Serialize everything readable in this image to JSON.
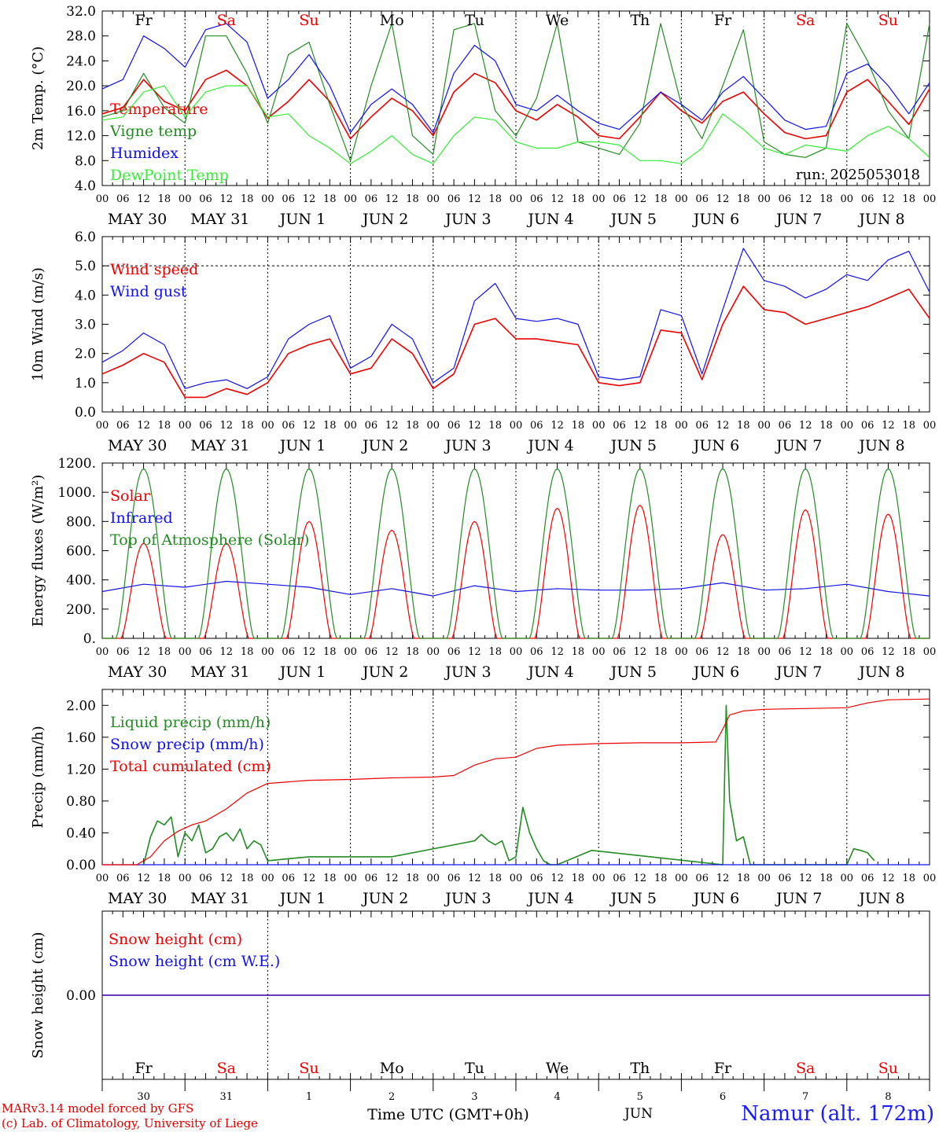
{
  "run_label": "run: 2025053018",
  "footer": {
    "model_credit": "MARv3.14 model forced by GFS",
    "lab_credit": "(c) Lab. of Climatology, University of Liege",
    "station": "Namur (alt. 172m)",
    "xaxis_label": "Time UTC (GMT+0h)",
    "month_label": "JUN"
  },
  "days": [
    {
      "abbr": "Fr",
      "date_label": "MAY 30",
      "num": "30",
      "weekend": false
    },
    {
      "abbr": "Sa",
      "date_label": "MAY 31",
      "num": "31",
      "weekend": true
    },
    {
      "abbr": "Su",
      "date_label": "JUN  1",
      "num": "1",
      "weekend": true
    },
    {
      "abbr": "Mo",
      "date_label": "JUN  2",
      "num": "2",
      "weekend": false
    },
    {
      "abbr": "Tu",
      "date_label": "JUN  3",
      "num": "3",
      "weekend": false
    },
    {
      "abbr": "We",
      "date_label": "JUN  4",
      "num": "4",
      "weekend": false
    },
    {
      "abbr": "Th",
      "date_label": "JUN  5",
      "num": "5",
      "weekend": false
    },
    {
      "abbr": "Fr",
      "date_label": "JUN  6",
      "num": "6",
      "weekend": false
    },
    {
      "abbr": "Sa",
      "date_label": "JUN  7",
      "num": "7",
      "weekend": true
    },
    {
      "abbr": "Su",
      "date_label": "JUN  8",
      "num": "8",
      "weekend": true
    }
  ],
  "hour_ticks": [
    "00",
    "06",
    "12",
    "18"
  ],
  "colors": {
    "red": "#ee0000",
    "blue": "#1010ee",
    "green": "#228b22",
    "lightgreen": "#33ee33",
    "weekend": "#ee0000",
    "weekday": "#000000"
  },
  "chart_data": [
    {
      "type": "line",
      "ylabel": "2m Temp. (°C)",
      "ylim": [
        4,
        32
      ],
      "yticks": [
        4,
        8,
        12,
        16,
        20,
        24,
        28,
        32
      ],
      "ytick_labels": [
        "4.0",
        "8.0",
        "12.0",
        "16.0",
        "20.0",
        "24.0",
        "28.0",
        "32.0"
      ],
      "show_day_abbr": true,
      "show_run": true,
      "x_hours": [
        0,
        6,
        12,
        18,
        24,
        30,
        36,
        42,
        48,
        54,
        60,
        66,
        72,
        78,
        84,
        90,
        96,
        102,
        108,
        114,
        120,
        126,
        132,
        138,
        144,
        150,
        156,
        162,
        168,
        174,
        180,
        186,
        192,
        198,
        204,
        210,
        216,
        222,
        228,
        234,
        240
      ],
      "series": [
        {
          "name": "Temperature",
          "color": "#ee0000",
          "values": [
            15.5,
            16.5,
            21.0,
            17.5,
            16.0,
            21.0,
            22.5,
            20.0,
            14.8,
            17.5,
            21.0,
            17.5,
            11.5,
            15.0,
            18.0,
            16.0,
            12.0,
            19.0,
            22.0,
            20.5,
            16.0,
            14.5,
            17.0,
            15.0,
            12.0,
            11.5,
            15.0,
            19.0,
            16.0,
            14.0,
            17.5,
            19.0,
            15.5,
            12.5,
            11.5,
            12.0,
            19.0,
            21.0,
            17.5,
            13.8,
            19.5
          ]
        },
        {
          "name": "Vigne temp",
          "color": "#228b22",
          "values": [
            15.0,
            16.0,
            22.0,
            16.5,
            14.0,
            28.0,
            28.0,
            22.0,
            14.0,
            25.0,
            27.0,
            17.0,
            8.0,
            20.0,
            30.0,
            12.0,
            9.0,
            29.0,
            30.0,
            16.0,
            12.0,
            18.0,
            30.0,
            11.0,
            10.0,
            9.0,
            14.0,
            30.0,
            17.0,
            11.5,
            20.0,
            29.0,
            11.0,
            9.0,
            8.5,
            10.0,
            30.0,
            24.0,
            16.0,
            11.5,
            30.0
          ]
        },
        {
          "name": "Humidex",
          "color": "#1010ee",
          "values": [
            19.5,
            21.0,
            28.0,
            26.0,
            23.0,
            29.0,
            30.0,
            27.0,
            18.0,
            21.0,
            25.0,
            20.0,
            12.5,
            17.0,
            19.5,
            17.0,
            12.5,
            22.0,
            26.5,
            24.0,
            17.0,
            16.0,
            18.5,
            16.0,
            14.0,
            13.0,
            16.0,
            19.0,
            17.0,
            14.5,
            19.0,
            21.5,
            18.0,
            14.5,
            13.0,
            13.5,
            22.0,
            23.5,
            20.0,
            15.5,
            20.5
          ]
        },
        {
          "name": "DewPoint Temp",
          "color": "#33ee33",
          "values": [
            14.5,
            15.0,
            19.0,
            20.0,
            15.0,
            19.0,
            20.0,
            20.0,
            15.0,
            15.5,
            12.0,
            10.0,
            7.5,
            9.5,
            12.0,
            9.0,
            7.5,
            12.0,
            15.0,
            14.5,
            11.0,
            10.0,
            10.0,
            11.0,
            11.0,
            10.5,
            8.0,
            8.0,
            7.5,
            10.0,
            15.5,
            13.0,
            10.0,
            9.0,
            10.5,
            10.0,
            9.5,
            12.0,
            13.5,
            11.5,
            8.5
          ]
        }
      ]
    },
    {
      "type": "line",
      "ylabel": "10m Wind (m/s)",
      "ylim": [
        0,
        6
      ],
      "yticks": [
        0,
        1,
        2,
        3,
        4,
        5,
        6
      ],
      "ytick_labels": [
        "0.0",
        "1.0",
        "2.0",
        "3.0",
        "4.0",
        "5.0",
        "6.0"
      ],
      "ref_line": 5,
      "x_hours": [
        0,
        6,
        12,
        18,
        24,
        30,
        36,
        42,
        48,
        54,
        60,
        66,
        72,
        78,
        84,
        90,
        96,
        102,
        108,
        114,
        120,
        126,
        132,
        138,
        144,
        150,
        156,
        162,
        168,
        174,
        180,
        186,
        192,
        198,
        204,
        210,
        216,
        222,
        228,
        234,
        240
      ],
      "series": [
        {
          "name": "Wind speed",
          "color": "#ee0000",
          "values": [
            1.3,
            1.6,
            2.0,
            1.7,
            0.5,
            0.5,
            0.8,
            0.6,
            1.0,
            2.0,
            2.3,
            2.5,
            1.3,
            1.5,
            2.5,
            2.0,
            0.8,
            1.3,
            3.0,
            3.2,
            2.5,
            2.5,
            2.4,
            2.3,
            1.0,
            0.9,
            1.0,
            2.8,
            2.7,
            1.1,
            3.0,
            4.3,
            3.5,
            3.4,
            3.0,
            3.2,
            3.4,
            3.6,
            3.9,
            4.2,
            3.2
          ]
        },
        {
          "name": "Wind gust",
          "color": "#1010ee",
          "values": [
            1.7,
            2.1,
            2.7,
            2.3,
            0.8,
            1.0,
            1.1,
            0.8,
            1.2,
            2.5,
            3.0,
            3.3,
            1.5,
            1.9,
            3.0,
            2.5,
            1.0,
            1.5,
            3.8,
            4.4,
            3.2,
            3.1,
            3.2,
            3.0,
            1.2,
            1.1,
            1.2,
            3.5,
            3.3,
            1.3,
            3.5,
            5.6,
            4.5,
            4.3,
            3.9,
            4.2,
            4.7,
            4.5,
            5.2,
            5.5,
            4.1
          ]
        }
      ]
    },
    {
      "type": "line",
      "ylabel": "Energy fluxes (W/m²)",
      "ylim": [
        0,
        1200
      ],
      "yticks": [
        0,
        200,
        400,
        600,
        800,
        1000,
        1200
      ],
      "ytick_labels": [
        "0.",
        "200.",
        "400.",
        "600.",
        "800.",
        "1000.",
        "1200."
      ],
      "series": [
        {
          "name": "Solar",
          "color": "#ee0000",
          "peak_hours": [
            12,
            36,
            60,
            84,
            108,
            132,
            156,
            180,
            204,
            228
          ],
          "peak_values": [
            650,
            650,
            800,
            740,
            800,
            890,
            910,
            710,
            880,
            850
          ]
        },
        {
          "name": "Infrared",
          "color": "#1010ee",
          "x_hours": [
            0,
            12,
            24,
            36,
            48,
            60,
            72,
            84,
            96,
            108,
            120,
            132,
            144,
            156,
            168,
            180,
            192,
            204,
            216,
            228,
            240
          ],
          "values": [
            320,
            370,
            350,
            390,
            370,
            350,
            300,
            340,
            290,
            360,
            320,
            340,
            330,
            330,
            340,
            380,
            330,
            340,
            370,
            320,
            290
          ]
        },
        {
          "name": "Top of Atmosphere (Solar)",
          "color": "#228b22",
          "peak_hours": [
            12,
            36,
            60,
            84,
            108,
            132,
            156,
            180,
            204,
            228
          ],
          "peak_values": [
            1160,
            1160,
            1160,
            1160,
            1160,
            1160,
            1160,
            1160,
            1160,
            1160
          ]
        }
      ]
    },
    {
      "type": "line",
      "ylabel": "Precip (mm/h)",
      "ylim": [
        0,
        2.2
      ],
      "yticks": [
        0,
        0.4,
        0.8,
        1.2,
        1.6,
        2.0
      ],
      "ytick_labels": [
        "0.00",
        "0.40",
        "0.80",
        "1.20",
        "1.60",
        "2.00"
      ],
      "series": [
        {
          "name": "Liquid precip (mm/h)",
          "color": "#228b22",
          "x_hours": [
            12,
            14,
            16,
            18,
            20,
            22,
            24,
            26,
            28,
            30,
            32,
            34,
            36,
            38,
            40,
            42,
            44,
            46,
            48,
            60,
            84,
            108,
            110,
            112,
            114,
            116,
            118,
            120,
            122,
            124,
            126,
            128,
            130,
            132,
            142,
            180,
            181,
            182,
            184,
            186,
            188,
            216,
            218,
            220,
            222,
            224
          ],
          "values": [
            0,
            0.35,
            0.55,
            0.5,
            0.6,
            0.1,
            0.4,
            0.3,
            0.5,
            0.15,
            0.2,
            0.35,
            0.4,
            0.3,
            0.45,
            0.2,
            0.3,
            0.25,
            0.05,
            0.1,
            0.1,
            0.3,
            0.38,
            0.3,
            0.25,
            0.3,
            0.05,
            0.1,
            0.72,
            0.4,
            0.2,
            0.05,
            0.0,
            0.0,
            0.18,
            0.0,
            2.0,
            0.8,
            0.3,
            0.35,
            0.0,
            0.0,
            0.2,
            0.18,
            0.15,
            0.05
          ]
        },
        {
          "name": "Snow precip (mm/h)",
          "color": "#1010ee",
          "x_hours": [
            0,
            240
          ],
          "values": [
            0,
            0
          ]
        },
        {
          "name": "Total cumulated (cm)",
          "color": "#ee0000",
          "x_hours": [
            0,
            10,
            14,
            18,
            22,
            26,
            30,
            36,
            42,
            48,
            54,
            60,
            72,
            84,
            96,
            102,
            108,
            114,
            120,
            126,
            132,
            144,
            156,
            168,
            178,
            180,
            182,
            186,
            192,
            204,
            216,
            222,
            228,
            240
          ],
          "values": [
            0,
            0,
            0.1,
            0.3,
            0.42,
            0.5,
            0.55,
            0.7,
            0.9,
            1.02,
            1.04,
            1.06,
            1.07,
            1.09,
            1.1,
            1.12,
            1.25,
            1.33,
            1.35,
            1.46,
            1.5,
            1.52,
            1.53,
            1.53,
            1.54,
            1.7,
            1.88,
            1.93,
            1.95,
            1.96,
            1.97,
            2.03,
            2.07,
            2.08
          ]
        }
      ]
    },
    {
      "type": "line",
      "ylabel": "Snow height (cm)",
      "ylim": [
        -1,
        1
      ],
      "yticks": [
        0
      ],
      "ytick_labels": [
        "0.00"
      ],
      "series": [
        {
          "name": "Snow height (cm)",
          "color": "#ee0000",
          "x_hours": [
            0,
            240
          ],
          "values": [
            0,
            0
          ]
        },
        {
          "name": "Snow height (cm W.E.)",
          "color": "#1010ee",
          "x_hours": [
            0,
            240
          ],
          "values": [
            0,
            0
          ]
        }
      ]
    }
  ]
}
